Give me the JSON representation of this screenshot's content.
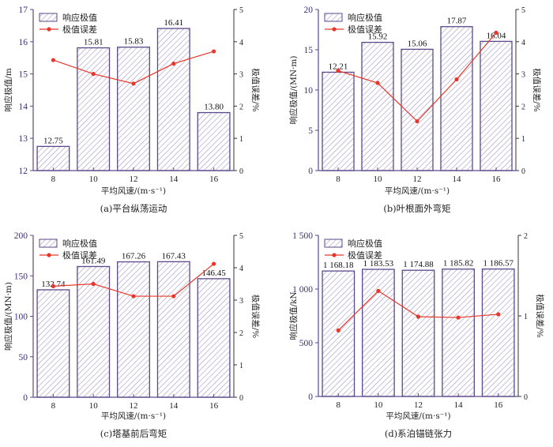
{
  "colors": {
    "bar_edge": "#5b4a8a",
    "hatch": "#9a8fc0",
    "line": "#e8372a",
    "axis": "#5b4a8a"
  },
  "legend": {
    "bar": "响应极值",
    "line": "极值误差"
  },
  "chart_data": [
    {
      "type": "bar",
      "caption": "(a)平台纵荡运动",
      "xlabel": "平均风速/(m·s⁻¹)",
      "ylabel": "响应极值/m",
      "ylabel_right": "极值误差/%",
      "categories": [
        "8",
        "10",
        "12",
        "14",
        "16"
      ],
      "ylim": [
        12,
        17
      ],
      "yticks": [
        "12",
        "13",
        "14",
        "15",
        "16",
        "17"
      ],
      "ylim_right": [
        0,
        5
      ],
      "yticks_right": [
        "0",
        "1",
        "2",
        "3",
        "4",
        "5"
      ],
      "legend_position": "top-left",
      "series": [
        {
          "name": "响应极值",
          "type": "bar",
          "values": [
            12.75,
            15.81,
            15.83,
            16.41,
            13.8
          ],
          "labels": [
            "12.75",
            "15.81",
            "15.83",
            "16.41",
            "13.80"
          ]
        },
        {
          "name": "极值误差",
          "type": "line",
          "axis": "right",
          "values": [
            3.43,
            3.0,
            2.7,
            3.32,
            3.7
          ]
        }
      ]
    },
    {
      "type": "bar",
      "caption": "(b)叶根面外弯矩",
      "xlabel": "平均风速/(m·s⁻¹)",
      "ylabel": "响应极值/(MN·m)",
      "ylabel_right": "极值误差/%",
      "categories": [
        "8",
        "10",
        "12",
        "14",
        "16"
      ],
      "ylim": [
        0,
        20
      ],
      "yticks": [
        "0",
        "5",
        "10",
        "15",
        "20"
      ],
      "ylim_right": [
        0,
        5
      ],
      "yticks_right": [
        "0",
        "1",
        "2",
        "3",
        "4",
        "5"
      ],
      "legend_position": "top-left",
      "series": [
        {
          "name": "响应极值",
          "type": "bar",
          "values": [
            12.21,
            15.92,
            15.06,
            17.87,
            16.04
          ],
          "labels": [
            "12.21",
            "15.92",
            "15.06",
            "17.87",
            "16.04"
          ]
        },
        {
          "name": "极值误差",
          "type": "line",
          "axis": "right",
          "values": [
            3.1,
            2.72,
            1.53,
            2.83,
            4.28
          ]
        }
      ]
    },
    {
      "type": "bar",
      "caption": "(c)塔基前后弯矩",
      "xlabel": "平均风速/(m·s⁻¹)",
      "ylabel": "响应极值/(MN·m)",
      "ylabel_right": "极值误差/%",
      "categories": [
        "8",
        "10",
        "12",
        "14",
        "16"
      ],
      "ylim": [
        0,
        200
      ],
      "yticks": [
        "0",
        "50",
        "100",
        "150",
        "200"
      ],
      "ylim_right": [
        0,
        5
      ],
      "yticks_right": [
        "0",
        "1",
        "2",
        "3",
        "4",
        "5"
      ],
      "legend_position": "top-left",
      "series": [
        {
          "name": "响应极值",
          "type": "bar",
          "values": [
            132.74,
            161.49,
            167.26,
            167.43,
            146.45
          ],
          "labels": [
            "132.74",
            "161.49",
            "167.26",
            "167.43",
            "146.45"
          ]
        },
        {
          "name": "极值误差",
          "type": "line",
          "axis": "right",
          "values": [
            3.43,
            3.5,
            3.12,
            3.12,
            4.12
          ]
        }
      ]
    },
    {
      "type": "bar",
      "caption": "(d)系泊锚链张力",
      "xlabel": "平均风速/(m·s⁻¹)",
      "ylabel": "响应极值/kN",
      "ylabel_right": "极值误差/%",
      "categories": [
        "8",
        "10",
        "12",
        "14",
        "16"
      ],
      "ylim": [
        0,
        1500
      ],
      "yticks": [
        "0",
        "500",
        "1 000",
        "1 500"
      ],
      "ylim_right": [
        0,
        2
      ],
      "yticks_right": [
        "0",
        "1",
        "2"
      ],
      "legend_position": "top-left",
      "series": [
        {
          "name": "响应极值",
          "type": "bar",
          "values": [
            1168.18,
            1183.53,
            1174.88,
            1185.82,
            1186.57
          ],
          "labels": [
            "1 168.18",
            "1 183.53",
            "1 174.88",
            "1 185.82",
            "1 186.57"
          ]
        },
        {
          "name": "极值误差",
          "type": "line",
          "axis": "right",
          "values": [
            0.82,
            1.31,
            0.99,
            0.98,
            1.02
          ]
        }
      ]
    }
  ]
}
